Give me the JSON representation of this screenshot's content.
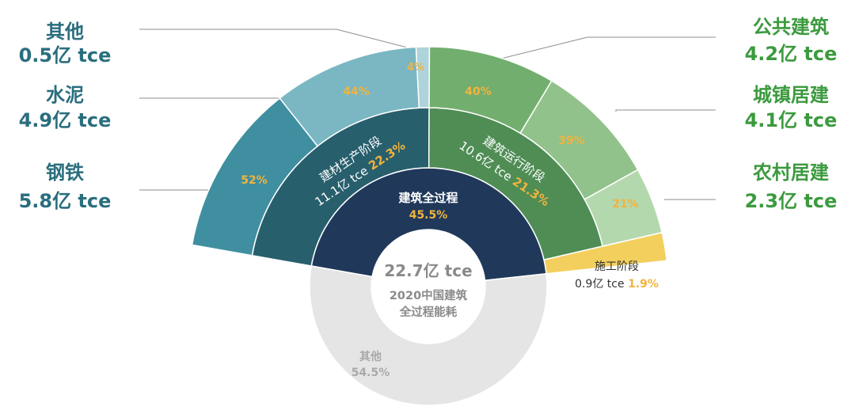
{
  "chart_data": {
    "type": "sunburst",
    "center": {
      "total": "22.7亿 tce",
      "caption_line1": "2020中国建筑",
      "caption_line2": "全过程能耗"
    },
    "ring1": [
      {
        "label": "建筑全过程",
        "value": 45.5,
        "pct_label": "45.5%",
        "color": "#20395a"
      },
      {
        "label": "其他",
        "value": 54.5,
        "pct_label": "54.5%",
        "color": "#e5e5e5"
      }
    ],
    "ring2": [
      {
        "label": "建材生产阶段",
        "amount": "11.1亿 tce",
        "pct_label": "22.3%",
        "value": 22.3,
        "color": "#285f6d"
      },
      {
        "label": "建筑运行阶段",
        "amount": "10.6亿 tce",
        "pct_label": "21.3%",
        "value": 21.3,
        "color": "#4f8d55"
      },
      {
        "label": "施工阶段",
        "amount": "0.9亿 tce",
        "pct_label": "1.9%",
        "value": 1.9,
        "color": "#f3cf5d"
      }
    ],
    "ring3": [
      {
        "parent": "建材生产阶段",
        "name": "钢铁",
        "amount": "5.8亿 tce",
        "pct_label": "52%",
        "value": 52,
        "color": "#3f8fa0"
      },
      {
        "parent": "建材生产阶段",
        "name": "水泥",
        "amount": "4.9亿 tce",
        "pct_label": "44%",
        "value": 44,
        "color": "#7ab7c3"
      },
      {
        "parent": "建材生产阶段",
        "name": "其他",
        "amount": "0.5亿 tce",
        "pct_label": "4%",
        "value": 4,
        "color": "#aed3da"
      },
      {
        "parent": "建筑运行阶段",
        "name": "公共建筑",
        "amount": "4.2亿 tce",
        "pct_label": "40%",
        "value": 40,
        "color": "#72ae6e"
      },
      {
        "parent": "建筑运行阶段",
        "name": "城镇居建",
        "amount": "4.1亿 tce",
        "pct_label": "39%",
        "value": 39,
        "color": "#91c28b"
      },
      {
        "parent": "建筑运行阶段",
        "name": "农村居建",
        "amount": "2.3亿 tce",
        "pct_label": "21%",
        "value": 21,
        "color": "#b4d8ad"
      }
    ],
    "colors": {
      "pct_accent": "#f2b33d",
      "left_label": "#2a6e7e",
      "right_label": "#3b9a3e",
      "center_text": "#8a8a8a",
      "leader_line": "#8c8c8c"
    }
  }
}
